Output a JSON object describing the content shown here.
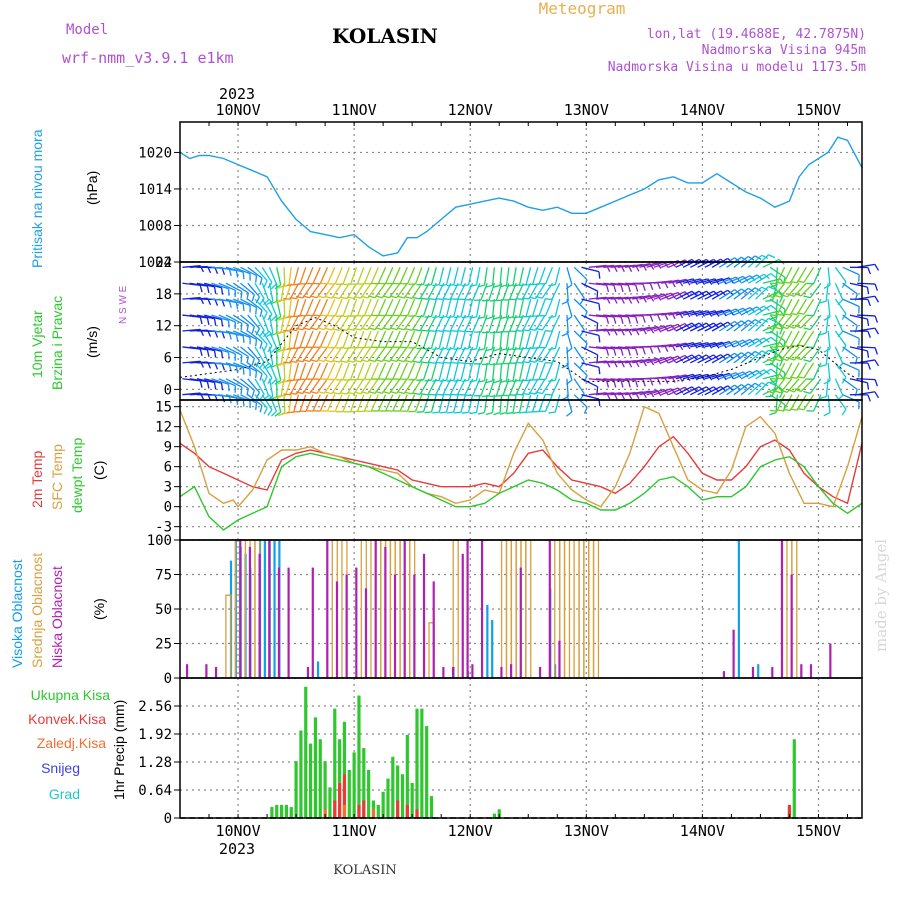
{
  "header": {
    "model_label": "Model",
    "model_name": "wrf-nmm_v3.9.1 e1km",
    "station": "KOLASIN",
    "product": "Meteogram",
    "lonlat": "lon,lat (19.4688E, 42.7875N)",
    "elevation": "Nadmorska Visina 945m",
    "model_elevation": "Nadmorska Visina u modelu 1173.5m",
    "watermark": "made by Angel",
    "footer": "KOLASIN"
  },
  "colors": {
    "pressure": "#1ea0e6",
    "temp2m": "#e83a3a",
    "sfc": "#d8a040",
    "dewpt": "#2ec82e",
    "high_cloud": "#10a0e6",
    "mid_cloud": "#d8a040",
    "low_cloud": "#b020b0",
    "rain_total": "#2ec82e",
    "rain_conv": "#e83a3a",
    "freezing": "#f07030",
    "snow": "#4040e0",
    "hail": "#20c8c8",
    "title": "#000000",
    "model_text": "#b050d0",
    "product_text": "#e6b050",
    "info_text": "#b050d0"
  },
  "time_axis": {
    "year": "2023",
    "start_hour": -12,
    "end_hour": 129,
    "day_labels": [
      "10NOV",
      "11NOV",
      "12NOV",
      "13NOV",
      "14NOV",
      "15NOV"
    ],
    "day_hours": [
      0,
      24,
      48,
      72,
      96,
      120
    ]
  },
  "chart_data": [
    {
      "type": "line",
      "panel": "pressure",
      "ylabel": [
        "Pritisak na nivou mora",
        "(hPa)"
      ],
      "yticks": [
        1002,
        1008,
        1014,
        1020
      ],
      "ylim": [
        1002,
        1025
      ],
      "series": [
        {
          "key": "pressure",
          "color_key": "pressure",
          "x": [
            -12,
            -10,
            -8,
            -6,
            -3,
            0,
            3,
            6,
            9,
            12,
            15,
            18,
            21,
            24,
            27,
            30,
            33,
            35,
            37,
            39,
            42,
            45,
            48,
            51,
            54,
            57,
            60,
            63,
            66,
            69,
            72,
            75,
            78,
            81,
            84,
            87,
            90,
            93,
            96,
            99,
            102,
            105,
            108,
            111,
            114,
            116,
            118,
            120,
            122,
            124,
            126,
            129
          ],
          "values": [
            1020,
            1019,
            1019.5,
            1019.5,
            1019,
            1018,
            1017,
            1016,
            1012,
            1009,
            1007,
            1006.5,
            1006,
            1006.5,
            1004.5,
            1003,
            1003.5,
            1006,
            1006,
            1007,
            1009,
            1011,
            1011.5,
            1012,
            1012.5,
            1012,
            1011,
            1010.5,
            1011,
            1010,
            1010,
            1011,
            1012,
            1013,
            1014,
            1015.5,
            1016,
            1015,
            1015,
            1016.5,
            1015,
            1013.5,
            1012.5,
            1011,
            1012,
            1016,
            1018,
            1019,
            1020,
            1022.5,
            1022,
            1017.5
          ]
        }
      ]
    },
    {
      "type": "wind_barbs",
      "panel": "wind",
      "ylabel": [
        "10m Vjetar",
        "Brzina i Pravac",
        "(m/s)"
      ],
      "compass": "N S W E",
      "yticks": [
        0,
        6,
        12,
        18,
        24
      ],
      "ylim": [
        -2,
        24
      ],
      "speed_scale": [
        {
          "max": 2,
          "color": "#8820c0"
        },
        {
          "max": 4,
          "color": "#1020e0"
        },
        {
          "max": 6,
          "color": "#1490f0"
        },
        {
          "max": 8,
          "color": "#10c8d8"
        },
        {
          "max": 10,
          "color": "#18d070"
        },
        {
          "max": 12,
          "color": "#6ad020"
        },
        {
          "max": 14,
          "color": "#b8d020"
        },
        {
          "max": 16,
          "color": "#e8c020"
        },
        {
          "max": 18,
          "color": "#f08020"
        },
        {
          "max": 99,
          "color": "#e82020"
        }
      ],
      "x": [
        -12,
        -6,
        0,
        6,
        12,
        16,
        20,
        24,
        30,
        36,
        42,
        48,
        54,
        60,
        66,
        72,
        78,
        84,
        90,
        96,
        102,
        108,
        112,
        116,
        120,
        126,
        129
      ],
      "speed": [
        3,
        4,
        5,
        7,
        16,
        18,
        16,
        13,
        12,
        12,
        8,
        7,
        9,
        8,
        7,
        2,
        2,
        2,
        2,
        3,
        5,
        8,
        10,
        11,
        10,
        4,
        2
      ],
      "direction_deg": [
        90,
        100,
        120,
        160,
        200,
        210,
        210,
        205,
        210,
        210,
        200,
        200,
        190,
        200,
        210,
        90,
        90,
        80,
        70,
        70,
        60,
        50,
        210,
        215,
        220,
        100,
        80
      ]
    },
    {
      "type": "line",
      "panel": "temperature",
      "ylabel": [
        "2m Temp",
        "SFC Temp",
        "dewpt Temp",
        "(C)"
      ],
      "yticks": [
        -3,
        0,
        3,
        6,
        9,
        12,
        15
      ],
      "ylim": [
        -5,
        16
      ],
      "series": [
        {
          "key": "t2m",
          "color_key": "temp2m",
          "x": [
            -12,
            -9,
            -6,
            -3,
            0,
            3,
            6,
            9,
            12,
            15,
            18,
            21,
            24,
            27,
            30,
            33,
            36,
            39,
            42,
            45,
            48,
            51,
            54,
            57,
            60,
            63,
            66,
            69,
            72,
            75,
            78,
            81,
            84,
            87,
            90,
            93,
            96,
            99,
            102,
            105,
            108,
            111,
            114,
            117,
            120,
            123,
            126,
            129
          ],
          "values": [
            9.5,
            8,
            6,
            5,
            4,
            3,
            2.5,
            7,
            8,
            8.5,
            8,
            7.5,
            7,
            6.5,
            6,
            5.5,
            4,
            3.5,
            3,
            3,
            3,
            3.5,
            3,
            5,
            8,
            8.5,
            6,
            4,
            3.5,
            3,
            2,
            3.5,
            6,
            9,
            10.5,
            8,
            5,
            4,
            4,
            6,
            9,
            10,
            8.5,
            5,
            3,
            1.5,
            0.5,
            9.5
          ]
        },
        {
          "key": "sfc",
          "color_key": "sfc",
          "x": [
            -12,
            -9,
            -6,
            -3,
            -1,
            0,
            3,
            6,
            9,
            12,
            15,
            18,
            21,
            24,
            27,
            30,
            33,
            36,
            39,
            42,
            45,
            48,
            51,
            54,
            57,
            60,
            63,
            66,
            69,
            72,
            75,
            78,
            81,
            84,
            87,
            90,
            93,
            96,
            99,
            102,
            105,
            108,
            111,
            114,
            117,
            120,
            123,
            126,
            129
          ],
          "values": [
            14.5,
            9,
            2,
            0.5,
            1,
            0,
            2.5,
            7,
            8.5,
            8.5,
            9,
            8,
            7.5,
            6.5,
            6,
            5.5,
            5,
            3,
            2,
            1.5,
            0.5,
            1,
            2.5,
            2,
            8,
            12.5,
            10,
            5,
            2.5,
            1,
            0,
            3,
            8,
            15,
            14,
            9,
            4,
            2.5,
            2,
            5.5,
            12,
            13.5,
            11,
            5,
            0.5,
            0.5,
            0,
            6,
            13.5
          ]
        },
        {
          "key": "dewpt",
          "color_key": "dewpt",
          "x": [
            -12,
            -9,
            -6,
            -3,
            0,
            3,
            6,
            9,
            12,
            15,
            18,
            21,
            24,
            27,
            30,
            33,
            36,
            39,
            42,
            45,
            48,
            51,
            54,
            57,
            60,
            63,
            66,
            69,
            72,
            75,
            78,
            81,
            84,
            87,
            90,
            93,
            96,
            99,
            102,
            105,
            108,
            111,
            114,
            117,
            120,
            123,
            126,
            129
          ],
          "values": [
            1.5,
            3,
            -1.5,
            -3.5,
            -2,
            -1,
            0,
            6,
            7.5,
            8,
            7.5,
            7,
            6.5,
            6,
            5,
            4,
            3,
            2,
            1,
            0,
            0,
            0.5,
            2,
            3,
            4,
            3.5,
            2.5,
            1,
            0.5,
            -0.5,
            -0.5,
            0.5,
            2,
            4,
            4.5,
            3,
            1,
            1.5,
            1.5,
            3,
            6,
            7,
            7.5,
            6,
            3,
            0.5,
            -1,
            0.5
          ]
        }
      ]
    },
    {
      "type": "bar",
      "panel": "clouds",
      "ylabel": [
        "Visoka Oblacnost",
        "Srednja Oblacnost",
        "Niska Oblacnost",
        "(%)"
      ],
      "yticks": [
        0,
        25,
        50,
        75,
        100
      ],
      "ylim": [
        0,
        100
      ],
      "series": [
        {
          "key": "high",
          "color_key": "high_cloud",
          "x": [
            -1,
            0,
            1,
            2,
            3,
            5,
            6,
            7,
            8,
            9,
            17,
            45,
            48,
            52,
            53,
            65,
            66,
            104,
            108
          ],
          "values": [
            85,
            100,
            95,
            90,
            80,
            100,
            100,
            100,
            100,
            100,
            12,
            8,
            5,
            53,
            42,
            65,
            10,
            100,
            10
          ]
        },
        {
          "key": "mid",
          "color_key": "mid_cloud",
          "x": [
            -2,
            0,
            1,
            3,
            4,
            20,
            22,
            26,
            28,
            29,
            30,
            31,
            32,
            33,
            34,
            35,
            36,
            40,
            45,
            55,
            56,
            57,
            58,
            59,
            60,
            66,
            67,
            68,
            70,
            71,
            72,
            73,
            74,
            114,
            115
          ],
          "values": [
            60,
            100,
            100,
            100,
            100,
            100,
            100,
            100,
            100,
            100,
            100,
            100,
            100,
            100,
            100,
            100,
            100,
            40,
            100,
            100,
            100,
            100,
            100,
            100,
            100,
            100,
            100,
            100,
            100,
            100,
            100,
            100,
            100,
            100,
            100
          ]
        },
        {
          "key": "low",
          "color_key": "low_cloud",
          "x": [
            -11,
            -7,
            -5,
            0,
            2,
            4,
            6,
            8,
            10,
            14,
            15,
            18,
            20,
            22,
            24,
            26,
            28,
            30,
            32,
            34,
            36,
            38,
            40,
            42,
            44,
            46,
            47,
            48,
            50,
            54,
            56,
            58,
            62,
            64,
            66,
            100,
            102,
            106,
            110,
            112,
            114,
            116,
            118,
            122
          ],
          "values": [
            10,
            10,
            8,
            100,
            95,
            90,
            100,
            80,
            80,
            8,
            80,
            100,
            70,
            75,
            80,
            65,
            100,
            95,
            75,
            100,
            75,
            90,
            70,
            8,
            8,
            90,
            100,
            10,
            100,
            8,
            10,
            80,
            8,
            100,
            27,
            5,
            35,
            8,
            8,
            100,
            75,
            10,
            10,
            25
          ]
        }
      ]
    },
    {
      "type": "bar",
      "panel": "precip",
      "ylabel": [
        "1hr Precip (mm)"
      ],
      "legend": [
        "Ukupna Kisa",
        "Konvek.Kisa",
        "Zaledj.Kisa",
        "Snijeg",
        "Grad"
      ],
      "yticks": [
        0,
        0.64,
        1.28,
        1.92,
        2.56
      ],
      "ylim": [
        0,
        3.2
      ],
      "series": [
        {
          "key": "total",
          "color_key": "rain_total",
          "x": [
            7,
            8,
            9,
            10,
            11,
            12,
            13,
            14,
            15,
            16,
            17,
            18,
            19,
            20,
            21,
            22,
            23,
            24,
            25,
            26,
            27,
            28,
            29,
            30,
            31,
            32,
            33,
            34,
            35,
            36,
            37,
            38,
            39,
            40,
            53,
            54,
            114,
            115
          ],
          "values": [
            0.25,
            0.3,
            0.3,
            0.3,
            0.25,
            1.3,
            2.0,
            3.0,
            1.7,
            2.3,
            1.8,
            1.3,
            0.7,
            2.5,
            1.8,
            2.2,
            1.1,
            1.5,
            2.8,
            1.6,
            1.1,
            0.4,
            0.3,
            0.6,
            0.9,
            1.4,
            1.2,
            1.0,
            1.9,
            0.8,
            2.5,
            2.5,
            2.1,
            0.5,
            0.1,
            0.2,
            0.25,
            1.8
          ]
        },
        {
          "key": "convective",
          "color_key": "rain_conv",
          "x": [
            20,
            21,
            22,
            25,
            26,
            33,
            35,
            37,
            114
          ],
          "values": [
            0.4,
            0.8,
            1.0,
            0.3,
            0.4,
            0.4,
            0.3,
            0.2,
            0.3
          ]
        },
        {
          "key": "freezing",
          "color_key": "freezing",
          "x": [
            18,
            22,
            28
          ],
          "values": [
            0.2,
            0.3,
            0.2
          ]
        },
        {
          "key": "snow",
          "color_key": "snow",
          "x": [],
          "values": []
        },
        {
          "key": "hail",
          "color_key": "hail",
          "x": [],
          "values": []
        }
      ]
    }
  ]
}
